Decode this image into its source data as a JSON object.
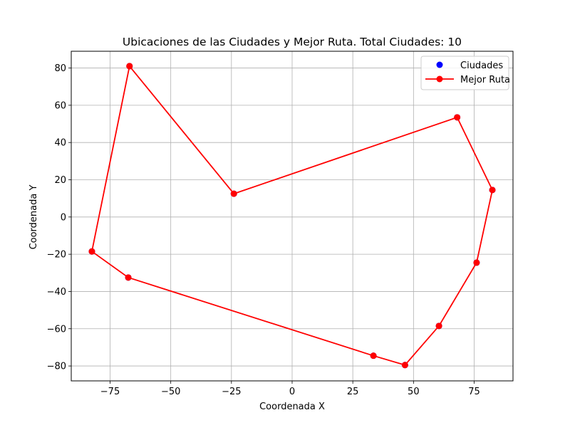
{
  "chart_data": {
    "type": "scatter",
    "title": "Ubicaciones de las Ciudades y Mejor Ruta. Total Ciudades: 10",
    "xlabel": "Coordenada X",
    "ylabel": "Coordenada Y",
    "xlim": [
      -91,
      91
    ],
    "ylim": [
      -88,
      89
    ],
    "x_ticks": [
      -75,
      -50,
      -25,
      0,
      25,
      50,
      75
    ],
    "y_ticks": [
      -80,
      -60,
      -40,
      -20,
      0,
      20,
      40,
      60,
      80
    ],
    "x_tick_labels": [
      "−75",
      "−50",
      "−25",
      "0",
      "25",
      "50",
      "75"
    ],
    "y_tick_labels": [
      "−80",
      "−60",
      "−40",
      "−20",
      "0",
      "20",
      "40",
      "60",
      "80"
    ],
    "grid": true,
    "legend_position": "top-right",
    "series": [
      {
        "name": "Ciudades",
        "kind": "scatter",
        "color": "#0000ff",
        "x": [
          -67,
          -24,
          68,
          82.5,
          76,
          60.5,
          46.5,
          33.5,
          -67.5,
          -82.5
        ],
        "y": [
          81,
          12.5,
          53.5,
          14.5,
          -24.5,
          -58.5,
          -79.5,
          -74.5,
          -32.5,
          -18.5
        ]
      },
      {
        "name": "Mejor Ruta",
        "kind": "line-marker",
        "color": "#ff0000",
        "x": [
          -67,
          -24,
          68,
          82.5,
          76,
          60.5,
          46.5,
          33.5,
          -67.5,
          -82.5,
          -67
        ],
        "y": [
          81,
          12.5,
          53.5,
          14.5,
          -24.5,
          -58.5,
          -79.5,
          -74.5,
          -32.5,
          -18.5,
          81
        ]
      }
    ]
  }
}
